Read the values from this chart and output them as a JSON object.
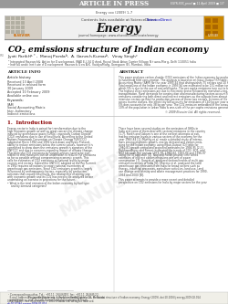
{
  "header_text": "ARTICLE IN PRESS",
  "doi_text": "EGYR-XXX_proof ■ 11 April 2009 ■ 1/7",
  "journal_url_text": "Energy xxx (2009) 1–7",
  "contents_text": "Contents lists available at ScienceDirect",
  "journal_name": "Energy",
  "journal_homepage": "journal homepage: www.elsevier.com/locate/energy",
  "title": "CO$_2$ emissions structure of Indian economy",
  "authors": "Jyoti Parikh$^{a,*}$,  Manoj Panda$^b$,  A. Ganesh-Kumar$^b$,  Vinay Singh$^c$",
  "affil_a": "$^a$ Integrated Research & Action for Development, IRADE, J-34 Oxford, Royal Stock Asian Carrier Village, Nirvana-Marg, Delhi 110051 India",
  "affil_b": "$^b$ Indira Gandhi Institute of Development Research, Gen. A.K. Vaidya Marg, Goregaon (E), Mumbai, India",
  "article_info_title": "ARTICLE INFO",
  "article_history": "Article history:",
  "received": "Received 13 April 2008",
  "revised1": "Received in revised form",
  "revised2": "30 January 2009",
  "accepted": "Accepted 10 February 2009",
  "available": "Available online xxx",
  "keywords_label": "Keywords:",
  "kw1": "SAM",
  "kw2": "Social Accounting Matrix",
  "kw3": "Inter–Indirectory",
  "kw4": "Indirect emissions",
  "abstract_title": "ABSTRACT",
  "section_title": "1.  Introduction",
  "copyright": "© 2009 Elsevier Ltd. All rights reserved.",
  "bg_color": "#ffffff",
  "header_bg": "#999999",
  "header_text_color": "#ffffff",
  "journal_header_bg": "#f0f0f0",
  "border_color": "#bbbbbb",
  "title_color": "#000000",
  "text_color": "#444444",
  "dark_text": "#222222",
  "link_color": "#0000bb",
  "section_color": "#8b0000",
  "elsevier_orange": "#cc6600",
  "logo_bg": "#cc8800",
  "watermark_color": "#cccccc",
  "footnote_bg": "#f5f5ee",
  "marker_color": "#888888"
}
